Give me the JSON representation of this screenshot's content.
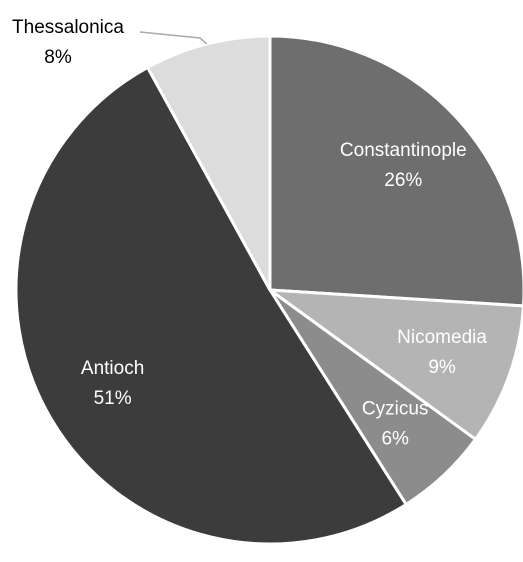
{
  "chart_data": {
    "type": "pie",
    "categories": [
      "Constantinople",
      "Nicomedia",
      "Cyzicus",
      "Antioch",
      "Thessalonica"
    ],
    "values": [
      26,
      9,
      6,
      51,
      8
    ],
    "value_labels": [
      "26%",
      "9%",
      "6%",
      "51%",
      "8%"
    ],
    "colors": [
      "#6e6e6e",
      "#b4b4b4",
      "#8c8c8c",
      "#3c3c3c",
      "#dcdcdc"
    ]
  }
}
